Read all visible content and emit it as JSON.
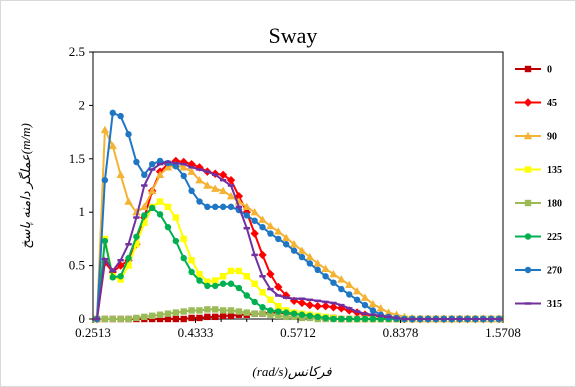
{
  "chart_data": {
    "type": "line",
    "title": "Sway",
    "xlabel": "فرکانس(rad/s)",
    "ylabel": "عملگر دامنه پاسخ(m/m)",
    "x_tick_labels": [
      "0.2513",
      "0.4333",
      "0.5712",
      "0.8378",
      "1.5708"
    ],
    "y_tick_labels": [
      "0",
      "0.5",
      "1",
      "1.5",
      "2",
      "2.5"
    ],
    "ylim": [
      0,
      2.5
    ],
    "grid": false,
    "legend_position": "right",
    "series": [
      {
        "name": "0",
        "color": "#c00000",
        "marker": "square",
        "values": [
          0,
          0,
          0,
          0,
          0,
          0,
          0,
          0,
          0,
          0,
          0,
          0,
          0.01,
          0.01,
          0.02,
          0.02,
          0.03,
          0.03,
          0.04,
          0.04,
          0.05,
          0.05,
          0.06,
          0.06,
          0.05,
          0.05,
          0.04,
          0.03,
          0.02,
          0.01,
          0.01,
          0,
          0,
          0,
          0,
          0,
          0,
          0,
          0,
          0,
          0,
          0,
          0,
          0,
          0,
          0,
          0,
          0,
          0,
          0,
          0,
          0
        ]
      },
      {
        "name": "45",
        "color": "#ff0000",
        "marker": "diamond",
        "values": [
          0,
          0.53,
          0.44,
          0.5,
          0.55,
          0.7,
          0.95,
          1.2,
          1.38,
          1.45,
          1.48,
          1.47,
          1.45,
          1.42,
          1.38,
          1.36,
          1.35,
          1.3,
          1.15,
          1,
          0.8,
          0.6,
          0.42,
          0.3,
          0.22,
          0.17,
          0.15,
          0.13,
          0.12,
          0.12,
          0.11,
          0.1,
          0.08,
          0.06,
          0.04,
          0.03,
          0.02,
          0.01,
          0.01,
          0,
          0,
          0,
          0,
          0,
          0,
          0,
          0,
          0,
          0,
          0,
          0,
          0
        ]
      },
      {
        "name": "90",
        "color": "#f5b335",
        "marker": "triangle",
        "values": [
          0,
          1.77,
          1.62,
          1.35,
          1.1,
          1,
          1.05,
          1.2,
          1.35,
          1.42,
          1.44,
          1.42,
          1.38,
          1.3,
          1.25,
          1.22,
          1.2,
          1.15,
          1.1,
          1.05,
          1,
          0.93,
          0.87,
          0.82,
          0.76,
          0.7,
          0.64,
          0.58,
          0.52,
          0.47,
          0.42,
          0.37,
          0.32,
          0.26,
          0.2,
          0.14,
          0.1,
          0.06,
          0.04,
          0.02,
          0.01,
          0,
          0,
          0,
          0,
          0,
          0,
          0,
          0,
          0,
          0,
          0
        ]
      },
      {
        "name": "135",
        "color": "#ffff00",
        "marker": "square",
        "values": [
          0,
          0.75,
          0.4,
          0.37,
          0.5,
          0.7,
          0.9,
          1.05,
          1.1,
          1.05,
          0.95,
          0.75,
          0.55,
          0.42,
          0.35,
          0.36,
          0.4,
          0.45,
          0.45,
          0.4,
          0.33,
          0.25,
          0.18,
          0.12,
          0.08,
          0.06,
          0.05,
          0.04,
          0.03,
          0.02,
          0.01,
          0,
          0,
          0,
          0,
          0,
          0,
          0,
          0,
          0,
          0,
          0,
          0,
          0,
          0,
          0,
          0,
          0,
          0,
          0,
          0,
          0
        ]
      },
      {
        "name": "180",
        "color": "#9bbb59",
        "marker": "square",
        "values": [
          0,
          0,
          0,
          0,
          0,
          0.01,
          0.02,
          0.03,
          0.04,
          0.05,
          0.06,
          0.07,
          0.08,
          0.08,
          0.09,
          0.09,
          0.08,
          0.08,
          0.07,
          0.06,
          0.05,
          0.05,
          0.04,
          0.03,
          0.02,
          0.02,
          0.01,
          0.01,
          0,
          0,
          0,
          0,
          0,
          0,
          0,
          0,
          0,
          0,
          0,
          0,
          0,
          0,
          0,
          0,
          0,
          0,
          0,
          0,
          0,
          0,
          0,
          0
        ]
      },
      {
        "name": "225",
        "color": "#00b050",
        "marker": "circle",
        "values": [
          0,
          0.73,
          0.39,
          0.4,
          0.57,
          0.77,
          0.97,
          1.04,
          0.98,
          0.86,
          0.73,
          0.57,
          0.44,
          0.36,
          0.31,
          0.31,
          0.33,
          0.33,
          0.29,
          0.22,
          0.16,
          0.11,
          0.08,
          0.07,
          0.06,
          0.05,
          0.04,
          0.03,
          0.02,
          0.01,
          0,
          0,
          0,
          0,
          0,
          0,
          0,
          0,
          0,
          0,
          0,
          0,
          0,
          0,
          0,
          0,
          0,
          0,
          0,
          0,
          0,
          0
        ]
      },
      {
        "name": "270",
        "color": "#1f77c4",
        "marker": "circle",
        "values": [
          0,
          1.3,
          1.93,
          1.9,
          1.73,
          1.47,
          1.35,
          1.45,
          1.48,
          1.46,
          1.43,
          1.34,
          1.2,
          1.1,
          1.05,
          1.05,
          1.05,
          1.05,
          1.02,
          0.97,
          0.92,
          0.86,
          0.8,
          0.75,
          0.7,
          0.64,
          0.58,
          0.52,
          0.46,
          0.4,
          0.34,
          0.28,
          0.23,
          0.18,
          0.13,
          0.08,
          0.04,
          0.02,
          0.01,
          0,
          0,
          0,
          0,
          0,
          0,
          0,
          0,
          0,
          0,
          0,
          0,
          0
        ]
      },
      {
        "name": "315",
        "color": "#7030a0",
        "marker": "x",
        "values": [
          0,
          0.56,
          0.45,
          0.55,
          0.7,
          0.95,
          1.25,
          1.4,
          1.45,
          1.47,
          1.46,
          1.45,
          1.42,
          1.4,
          1.38,
          1.35,
          1.3,
          1.25,
          1.05,
          0.85,
          0.6,
          0.4,
          0.28,
          0.22,
          0.2,
          0.19,
          0.19,
          0.18,
          0.17,
          0.16,
          0.15,
          0.13,
          0.1,
          0.07,
          0.05,
          0.04,
          0.03,
          0.02,
          0.01,
          0,
          0,
          0,
          0,
          0,
          0,
          0,
          0,
          0,
          0,
          0,
          0,
          0
        ]
      }
    ]
  }
}
